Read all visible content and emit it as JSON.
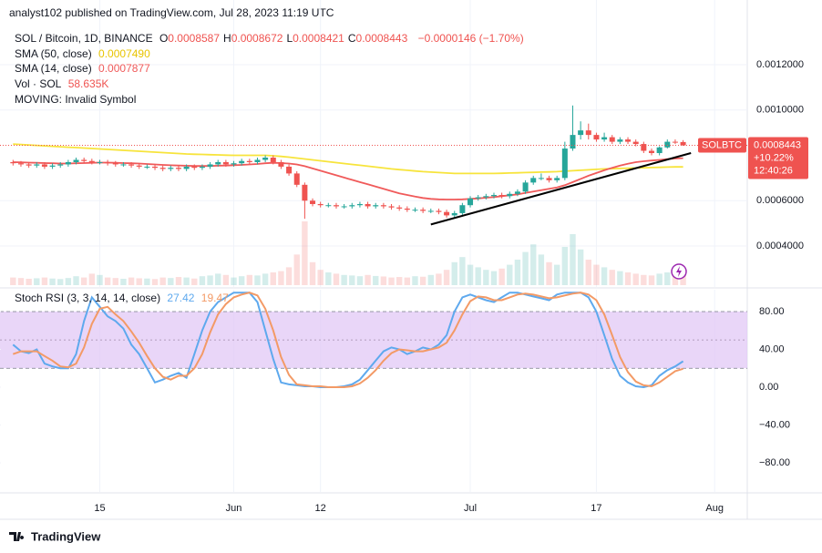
{
  "header": {
    "publisher": "analyst102 published on TradingView.com, Jul 28, 2023 11:19 UTC"
  },
  "chart_data": {
    "type": "candlestick",
    "title": "SOL / Bitcoin, 1D, BINANCE",
    "ohlc_legend": [
      {
        "label": "O",
        "value": "0.0008587"
      },
      {
        "label": "H",
        "value": "0.0008672"
      },
      {
        "label": "L",
        "value": "0.0008421"
      },
      {
        "label": "C",
        "value": "0.0008443"
      }
    ],
    "change": "−0.0000146 (−1.70%)",
    "annotation": "MOVING: Invalid Symbol",
    "up_color": "#26a69a",
    "down_color": "#ef5350",
    "xlim": [
      -0.5,
      93.14
    ],
    "xticks": [
      {
        "value": 11,
        "label": "15"
      },
      {
        "value": 28,
        "label": "Jun"
      },
      {
        "value": 39,
        "label": "12"
      },
      {
        "value": 58,
        "label": "Jul"
      },
      {
        "value": 74,
        "label": "17"
      },
      {
        "value": 89,
        "label": "Aug"
      }
    ],
    "ylim": [
      0.000219,
      0.001373
    ],
    "yticks": [
      {
        "value": 0.0004,
        "label": "0.0004000"
      },
      {
        "value": 0.0006,
        "label": "0.0006000"
      },
      {
        "value": 0.001,
        "label": "0.0010000"
      },
      {
        "value": 0.0012,
        "label": "0.0012000"
      }
    ],
    "grid": true,
    "open": [
      0.00077,
      0.000765,
      0.00076,
      0.000755,
      0.00076,
      0.00075,
      0.000755,
      0.00076,
      0.00077,
      0.00078,
      0.000775,
      0.00077,
      0.00077,
      0.000765,
      0.00076,
      0.00076,
      0.000755,
      0.00075,
      0.00075,
      0.000745,
      0.00074,
      0.000745,
      0.00074,
      0.00075,
      0.000745,
      0.00075,
      0.00076,
      0.00077,
      0.00076,
      0.000765,
      0.000775,
      0.00077,
      0.00078,
      0.00079,
      0.00077,
      0.00075,
      0.00072,
      0.00067,
      0.0006,
      0.000585,
      0.00058,
      0.00058,
      0.000575,
      0.000575,
      0.00058,
      0.000585,
      0.000575,
      0.00058,
      0.000575,
      0.00057,
      0.000565,
      0.00056,
      0.00056,
      0.000555,
      0.000555,
      0.00055,
      0.000535,
      0.000545,
      0.00058,
      0.00061,
      0.000615,
      0.00062,
      0.000625,
      0.00062,
      0.00063,
      0.00064,
      0.00068,
      0.0007,
      0.0007,
      0.00069,
      0.0007,
      0.00083,
      0.00089,
      0.00091,
      0.00089,
      0.00087,
      0.00088,
      0.00086,
      0.00087,
      0.00086,
      0.00085,
      0.00082,
      0.00081,
      0.000835,
      0.00086,
      0.0008587
    ],
    "high": [
      0.00078,
      0.000775,
      0.00077,
      0.00077,
      0.00077,
      0.000765,
      0.00077,
      0.00078,
      0.00079,
      0.00079,
      0.000785,
      0.00078,
      0.00078,
      0.000775,
      0.00077,
      0.00077,
      0.000765,
      0.00076,
      0.00076,
      0.000755,
      0.000755,
      0.000755,
      0.00076,
      0.00076,
      0.00076,
      0.00077,
      0.00078,
      0.00078,
      0.000775,
      0.000785,
      0.000785,
      0.00079,
      0.0008,
      0.0008,
      0.00078,
      0.00076,
      0.00073,
      0.00068,
      0.00061,
      0.000595,
      0.00059,
      0.00059,
      0.000585,
      0.00059,
      0.000595,
      0.000595,
      0.00059,
      0.00059,
      0.000585,
      0.00058,
      0.000575,
      0.00057,
      0.00057,
      0.000565,
      0.000565,
      0.00056,
      0.000555,
      0.00059,
      0.00062,
      0.000625,
      0.00063,
      0.000635,
      0.000635,
      0.00064,
      0.00065,
      0.00069,
      0.00071,
      0.00072,
      0.00071,
      0.00071,
      0.00086,
      0.00102,
      0.00095,
      0.00094,
      0.0009,
      0.0009,
      0.00089,
      0.00088,
      0.00088,
      0.00087,
      0.00086,
      0.00083,
      0.00084,
      0.00087,
      0.00087,
      0.0008672
    ],
    "low": [
      0.000755,
      0.00075,
      0.000745,
      0.000745,
      0.00074,
      0.00074,
      0.000745,
      0.00075,
      0.00076,
      0.000765,
      0.00076,
      0.00076,
      0.000755,
      0.00075,
      0.00075,
      0.000745,
      0.00074,
      0.00074,
      0.000735,
      0.00073,
      0.00073,
      0.00073,
      0.00073,
      0.000735,
      0.000735,
      0.00074,
      0.00075,
      0.00075,
      0.00075,
      0.000755,
      0.00076,
      0.00076,
      0.00077,
      0.00076,
      0.00074,
      0.00071,
      0.00066,
      0.00052,
      0.000575,
      0.00057,
      0.00057,
      0.000565,
      0.000565,
      0.000565,
      0.00057,
      0.000565,
      0.000565,
      0.000565,
      0.00056,
      0.000555,
      0.00055,
      0.00055,
      0.000545,
      0.000545,
      0.00054,
      0.000525,
      0.000525,
      0.000535,
      0.00057,
      0.0006,
      0.000605,
      0.00061,
      0.00061,
      0.00061,
      0.00062,
      0.00063,
      0.00067,
      0.00069,
      0.00068,
      0.00068,
      0.00069,
      0.00082,
      0.00087,
      0.00087,
      0.00086,
      0.00086,
      0.00085,
      0.00085,
      0.00085,
      0.00084,
      0.00081,
      0.0008,
      0.0008,
      0.00083,
      0.00085,
      0.0008421
    ],
    "close": [
      0.000765,
      0.00076,
      0.000755,
      0.00076,
      0.00075,
      0.000755,
      0.00076,
      0.00077,
      0.00078,
      0.000775,
      0.00077,
      0.00077,
      0.000765,
      0.00076,
      0.00076,
      0.000755,
      0.00075,
      0.00075,
      0.000745,
      0.00074,
      0.000745,
      0.00074,
      0.00075,
      0.000745,
      0.00075,
      0.00076,
      0.00077,
      0.00076,
      0.000765,
      0.000775,
      0.00077,
      0.00078,
      0.00079,
      0.00077,
      0.00075,
      0.00072,
      0.00067,
      0.0006,
      0.000585,
      0.00058,
      0.00058,
      0.000575,
      0.000575,
      0.00058,
      0.000585,
      0.000575,
      0.00058,
      0.000575,
      0.00057,
      0.000565,
      0.00056,
      0.00056,
      0.000555,
      0.000555,
      0.00055,
      0.000535,
      0.000545,
      0.00058,
      0.00061,
      0.000615,
      0.00062,
      0.000625,
      0.00062,
      0.00063,
      0.00064,
      0.00068,
      0.0007,
      0.0007,
      0.00069,
      0.0007,
      0.00083,
      0.00089,
      0.00091,
      0.00089,
      0.00087,
      0.00088,
      0.00086,
      0.00087,
      0.00086,
      0.00085,
      0.00082,
      0.00081,
      0.000835,
      0.00086,
      0.000859,
      0.0008443
    ],
    "indicators": [
      {
        "name": "SMA (50, close)",
        "value_label": "0.0007490",
        "color": "#f7e43c",
        "values": [
          0.00085,
          0.000848,
          0.000846,
          0.000844,
          0.000842,
          0.00084,
          0.000838,
          0.000836,
          0.000834,
          0.000832,
          0.00083,
          0.000828,
          0.000826,
          0.000824,
          0.000822,
          0.00082,
          0.000818,
          0.000816,
          0.000814,
          0.000812,
          0.00081,
          0.000808,
          0.000806,
          0.000805,
          0.000804,
          0.000803,
          0.000802,
          0.000801,
          0.0008,
          0.0008,
          0.0008,
          0.0008,
          0.0008,
          0.000798,
          0.000795,
          0.000792,
          0.000788,
          0.000784,
          0.00078,
          0.000776,
          0.000772,
          0.000768,
          0.000764,
          0.00076,
          0.000756,
          0.000752,
          0.000748,
          0.000744,
          0.00074,
          0.000737,
          0.000734,
          0.000731,
          0.000728,
          0.000726,
          0.000724,
          0.000722,
          0.00072,
          0.00072,
          0.00072,
          0.00072,
          0.00072,
          0.00072,
          0.000721,
          0.000722,
          0.000723,
          0.000724,
          0.000725,
          0.000726,
          0.000727,
          0.000728,
          0.00073,
          0.000732,
          0.000734,
          0.000736,
          0.000738,
          0.00074,
          0.000741,
          0.000742,
          0.000743,
          0.000744,
          0.000745,
          0.000746,
          0.000747,
          0.000748,
          0.000749,
          0.000749
        ]
      },
      {
        "name": "SMA (14, close)",
        "value_label": "0.0007877",
        "color": "#f05a5a",
        "values": [
          0.00077,
          0.000769,
          0.000768,
          0.000767,
          0.000766,
          0.000765,
          0.000764,
          0.000764,
          0.000765,
          0.000766,
          0.000767,
          0.000768,
          0.000768,
          0.000767,
          0.000766,
          0.000765,
          0.000764,
          0.000762,
          0.00076,
          0.000758,
          0.000756,
          0.000755,
          0.000754,
          0.000753,
          0.000753,
          0.000753,
          0.000754,
          0.000755,
          0.000756,
          0.000758,
          0.00076,
          0.000762,
          0.000765,
          0.000767,
          0.000766,
          0.000764,
          0.00076,
          0.000752,
          0.000742,
          0.000732,
          0.000722,
          0.000712,
          0.000702,
          0.000692,
          0.000682,
          0.000672,
          0.000662,
          0.000652,
          0.000642,
          0.000632,
          0.000625,
          0.000618,
          0.000612,
          0.000608,
          0.000606,
          0.000605,
          0.000605,
          0.000606,
          0.000608,
          0.00061,
          0.000613,
          0.000616,
          0.00062,
          0.000624,
          0.000628,
          0.000634,
          0.00064,
          0.000646,
          0.000652,
          0.000658,
          0.000668,
          0.000682,
          0.000696,
          0.00071,
          0.000722,
          0.000734,
          0.000745,
          0.000755,
          0.000763,
          0.00077,
          0.000774,
          0.000777,
          0.00078,
          0.000783,
          0.000786,
          0.0007877
        ]
      }
    ],
    "volume": {
      "name": "Vol · SOL",
      "value_label": "58.635K",
      "values": [
        30000,
        28000,
        25000,
        27000,
        30000,
        26000,
        24000,
        28000,
        35000,
        30000,
        45000,
        40000,
        30000,
        28000,
        25000,
        30000,
        27000,
        26000,
        24000,
        30000,
        28000,
        32000,
        30000,
        26000,
        35000,
        38000,
        45000,
        40000,
        30000,
        35000,
        40000,
        38000,
        45000,
        50000,
        55000,
        70000,
        120000,
        250000,
        90000,
        60000,
        50000,
        45000,
        40000,
        38000,
        35000,
        40000,
        36000,
        34000,
        30000,
        32000,
        30000,
        35000,
        33000,
        40000,
        45000,
        60000,
        90000,
        110000,
        80000,
        70000,
        60000,
        55000,
        65000,
        80000,
        100000,
        130000,
        160000,
        120000,
        90000,
        80000,
        150000,
        200000,
        140000,
        100000,
        80000,
        70000,
        60000,
        55000,
        50000,
        45000,
        40000,
        38000,
        45000,
        50000,
        55000,
        58635
      ]
    },
    "trendline": {
      "x": [
        53,
        86
      ],
      "y": [
        0.000495,
        0.00081
      ],
      "color": "#000000"
    },
    "price_tag": {
      "symbol": "SOLBTC",
      "price": "0.0008443",
      "change": "+10.22%",
      "countdown": "12:40:26"
    },
    "stoch": {
      "name": "Stoch RSI (3, 3, 14, 14, close)",
      "ylim": [
        -110.8,
        103.1
      ],
      "yticks": [
        {
          "value": 80,
          "label": "80.00"
        },
        {
          "value": 40,
          "label": "40.00"
        },
        {
          "value": 0,
          "label": "0.00"
        },
        {
          "value": -40,
          "label": "−40.00"
        },
        {
          "value": -80,
          "label": "−80.00"
        }
      ],
      "band": [
        20,
        80
      ],
      "midline": 50,
      "band_color": "#e1c8f5",
      "series": [
        {
          "value_label": "27.42",
          "color": "#5ea9ee",
          "values": [
            45,
            38,
            36,
            40,
            25,
            22,
            20,
            20,
            35,
            70,
            95,
            85,
            75,
            70,
            62,
            45,
            35,
            20,
            5,
            8,
            12,
            15,
            10,
            35,
            60,
            80,
            90,
            95,
            100,
            100,
            100,
            90,
            60,
            30,
            5,
            3,
            2,
            1,
            1,
            0,
            0,
            0,
            1,
            3,
            8,
            18,
            28,
            38,
            42,
            40,
            35,
            38,
            42,
            40,
            45,
            55,
            80,
            95,
            98,
            95,
            92,
            90,
            95,
            100,
            100,
            98,
            96,
            94,
            92,
            98,
            100,
            100,
            100,
            95,
            80,
            55,
            30,
            12,
            5,
            1,
            0,
            2,
            12,
            18,
            22,
            27.42
          ]
        },
        {
          "value_label": "19.47",
          "color": "#f39a66",
          "values": [
            35,
            38,
            38,
            38,
            33,
            28,
            22,
            21,
            25,
            42,
            67,
            83,
            85,
            77,
            70,
            59,
            47,
            33,
            20,
            11,
            8,
            12,
            12,
            20,
            35,
            58,
            77,
            88,
            95,
            98,
            100,
            97,
            83,
            60,
            32,
            13,
            3,
            2,
            1,
            1,
            0,
            0,
            0,
            1,
            4,
            10,
            18,
            28,
            36,
            40,
            39,
            38,
            38,
            40,
            42,
            47,
            60,
            77,
            91,
            96,
            95,
            92,
            92,
            95,
            98,
            99,
            98,
            96,
            94,
            95,
            97,
            99,
            100,
            98,
            92,
            77,
            55,
            32,
            16,
            6,
            2,
            1,
            5,
            11,
            17,
            19.47
          ]
        }
      ]
    }
  },
  "footer": {
    "brand": "TradingView"
  }
}
